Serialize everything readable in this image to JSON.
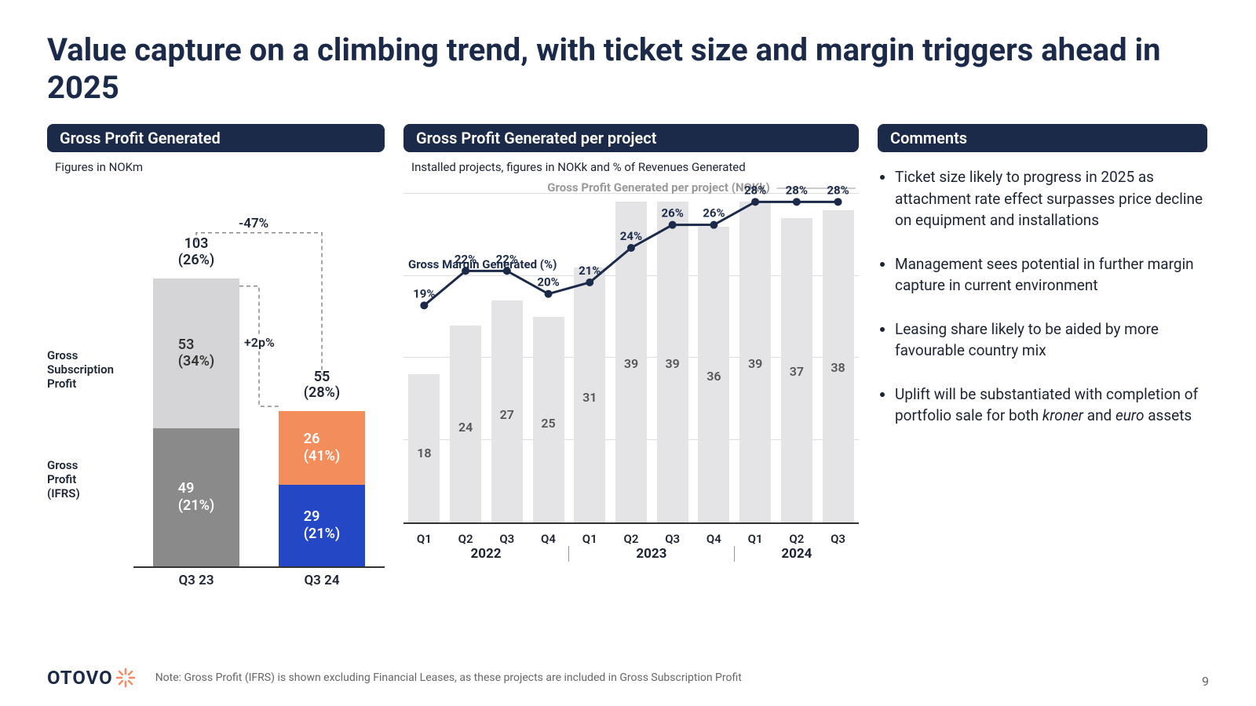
{
  "title": "Value capture on a climbing trend, with ticket size and margin triggers ahead in 2025",
  "colors": {
    "header_bg": "#1c2a4a",
    "ifrs_q3_23": "#8a8a8a",
    "sub_q3_23": "#d5d5d7",
    "ifrs_q3_24": "#2447c6",
    "sub_q3_24": "#f38e5c",
    "p2_bar": "#e4e4e6",
    "line": "#1c2a4a",
    "grid": "#dddddd",
    "text": "#1c2434",
    "logo_accent": "#f38e5c"
  },
  "panel1": {
    "header": "Gross Profit Generated",
    "subtitle": "Figures in NOKm",
    "unit_scale": 3.6,
    "yaxis_max": 110,
    "left_labels": {
      "top": "Gross\nSubscription\nProfit",
      "bottom": "Gross\nProfit\n(IFRS)"
    },
    "delta_top": "-47%",
    "delta_mid": "+2p%",
    "bars": [
      {
        "x": "Q3 23",
        "total_label": "103\n(26%)",
        "segments": [
          {
            "label": "49\n(21%)",
            "value": 49,
            "color_key": "ifrs_q3_23"
          },
          {
            "label": "53\n(34%)",
            "value": 53,
            "color_key": "sub_q3_23",
            "text_color": "#333"
          }
        ]
      },
      {
        "x": "Q3 24",
        "total_label": "55\n(28%)",
        "segments": [
          {
            "label": "29\n(21%)",
            "value": 29,
            "color_key": "ifrs_q3_24"
          },
          {
            "label": "26\n(41%)",
            "value": 26,
            "color_key": "sub_q3_24"
          }
        ]
      }
    ]
  },
  "panel2": {
    "header": "Gross Profit Generated per project",
    "subtitle": "Installed projects, figures in NOKk and % of Revenues Generated",
    "bar_series_label": "Gross Profit Generated per project (NOKk)",
    "line_series_label": "Gross Margin Generated (%)",
    "yaxis_max_bar": 42,
    "yaxis_max_line": 30,
    "gridlines_bar": [
      10,
      20,
      30,
      40
    ],
    "years": [
      {
        "label": "2022",
        "span": 4
      },
      {
        "label": "2023",
        "span": 4
      },
      {
        "label": "2024",
        "span": 3
      }
    ],
    "points": [
      {
        "q": "Q1",
        "bar": 18,
        "line": 19
      },
      {
        "q": "Q2",
        "bar": 24,
        "line": 22
      },
      {
        "q": "Q3",
        "bar": 27,
        "line": 22
      },
      {
        "q": "Q4",
        "bar": 25,
        "line": 20
      },
      {
        "q": "Q1",
        "bar": 31,
        "line": 21
      },
      {
        "q": "Q2",
        "bar": 39,
        "line": 24
      },
      {
        "q": "Q3",
        "bar": 39,
        "line": 26
      },
      {
        "q": "Q4",
        "bar": 36,
        "line": 26
      },
      {
        "q": "Q1",
        "bar": 39,
        "line": 28
      },
      {
        "q": "Q2",
        "bar": 37,
        "line": 28
      },
      {
        "q": "Q3",
        "bar": 38,
        "line": 28
      }
    ]
  },
  "panel3": {
    "header": "Comments",
    "bullets": [
      "Ticket size likely to progress in 2025 as attachment rate effect surpasses price decline on equipment and installations",
      "Management sees potential in further margin capture in current environment",
      "Leasing share likely to be aided by more favourable country mix",
      "Uplift will be substantiated with completion of portfolio sale for both <i>kroner</i> and <i>euro</i> assets"
    ]
  },
  "footer": {
    "logo": "OTOVO",
    "note": "Note: Gross Profit (IFRS) is shown excluding Financial Leases, as these projects are included in Gross Subscription Profit",
    "page": "9"
  }
}
